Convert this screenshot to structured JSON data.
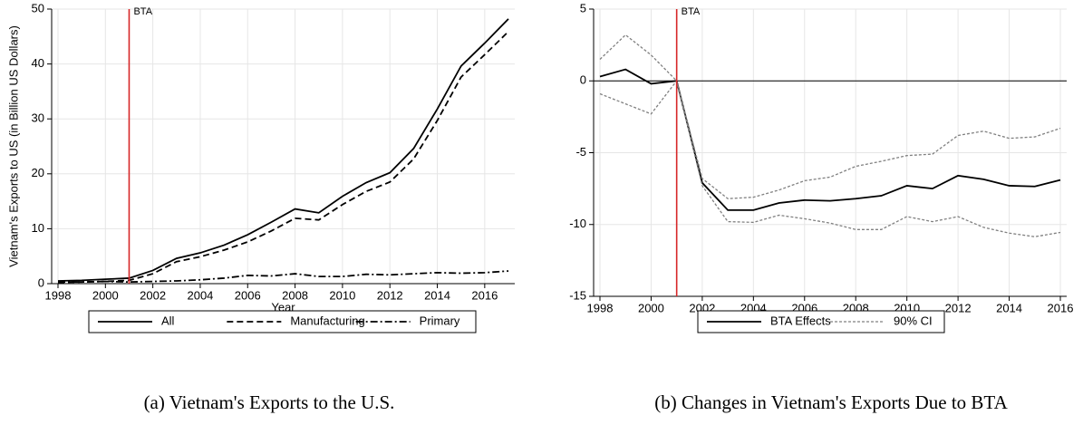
{
  "chart_data": [
    {
      "type": "line",
      "caption": "(a) Vietnam's Exports to the U.S.",
      "x_label": "Year",
      "y_label": "Vietnam's Exports to US (in Billion US Dollars)",
      "x": [
        1998,
        1999,
        2000,
        2001,
        2002,
        2003,
        2004,
        2005,
        2006,
        2007,
        2008,
        2009,
        2010,
        2011,
        2012,
        2013,
        2014,
        2015,
        2016,
        2017
      ],
      "series": [
        {
          "name": "All",
          "color": "#000000",
          "dash": "solid",
          "values": [
            0.5,
            0.6,
            0.8,
            1.0,
            2.4,
            4.6,
            5.6,
            7.0,
            8.9,
            11.2,
            13.6,
            12.9,
            15.9,
            18.4,
            20.2,
            24.6,
            31.8,
            39.6,
            43.8,
            48.2
          ]
        },
        {
          "name": "Manufacturing",
          "color": "#000000",
          "dash": "dashed",
          "values": [
            0.2,
            0.3,
            0.4,
            0.6,
            1.8,
            4.0,
            4.9,
            6.1,
            7.6,
            9.6,
            11.9,
            11.6,
            14.4,
            16.8,
            18.5,
            22.7,
            29.7,
            37.6,
            41.7,
            45.9
          ]
        },
        {
          "name": "Primary",
          "color": "#000000",
          "dash": "dashdot",
          "values": [
            0.3,
            0.3,
            0.4,
            0.3,
            0.4,
            0.5,
            0.7,
            1.0,
            1.5,
            1.4,
            1.8,
            1.3,
            1.3,
            1.7,
            1.6,
            1.8,
            2.0,
            1.9,
            2.0,
            2.3
          ]
        }
      ],
      "vline": {
        "x": 2001,
        "label": "BTA",
        "color": "#d62728"
      },
      "xlim": [
        1998,
        2017
      ],
      "xticks": [
        1998,
        2000,
        2002,
        2004,
        2006,
        2008,
        2010,
        2012,
        2014,
        2016
      ],
      "ylim": [
        0,
        50
      ],
      "yticks": [
        0,
        10,
        20,
        30,
        40,
        50
      ],
      "grid": true,
      "legend": "bottom"
    },
    {
      "type": "line",
      "caption": "(b) Changes in Vietnam's Exports Due to BTA",
      "x": [
        1998,
        1999,
        2000,
        2001,
        2002,
        2003,
        2004,
        2005,
        2006,
        2007,
        2008,
        2009,
        2010,
        2011,
        2012,
        2013,
        2014,
        2015,
        2016
      ],
      "series": [
        {
          "name": "BTA Effects",
          "color": "#000000",
          "dash": "solid",
          "values": [
            0.3,
            0.8,
            -0.2,
            0,
            -7.1,
            -9.0,
            -9.0,
            -8.5,
            -8.3,
            -8.35,
            -8.2,
            -8.0,
            -7.3,
            -7.5,
            -6.6,
            -6.85,
            -7.3,
            -7.35,
            -6.9
          ]
        },
        {
          "name": "90% CI",
          "color": "#808080",
          "dash": "dotted",
          "upper": [
            1.5,
            3.2,
            1.8,
            0,
            -6.8,
            -8.2,
            -8.1,
            -7.6,
            -6.95,
            -6.7,
            -5.95,
            -5.6,
            -5.2,
            -5.1,
            -3.8,
            -3.5,
            -4.0,
            -3.9,
            -3.3
          ],
          "lower": [
            -0.9,
            -1.6,
            -2.3,
            0,
            -7.3,
            -9.8,
            -9.85,
            -9.35,
            -9.6,
            -9.9,
            -10.35,
            -10.35,
            -9.45,
            -9.8,
            -9.45,
            -10.2,
            -10.6,
            -10.85,
            -10.55
          ]
        }
      ],
      "vline": {
        "x": 2001,
        "label": "BTA",
        "color": "#d62728"
      },
      "hline": 0,
      "xlim": [
        1998,
        2016
      ],
      "xticks": [
        1998,
        2000,
        2002,
        2004,
        2006,
        2008,
        2010,
        2012,
        2014,
        2016
      ],
      "ylim": [
        -15,
        5
      ],
      "yticks": [
        -15,
        -10,
        -5,
        0,
        5
      ],
      "grid": true,
      "legend": "bottom"
    }
  ]
}
